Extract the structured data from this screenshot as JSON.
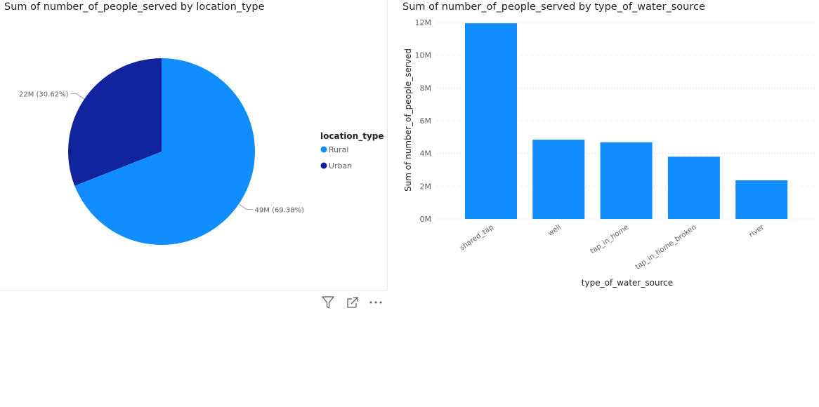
{
  "charts": [
    {
      "title": "Sum of number_of_people_served by location_type",
      "legend_title": "location_type",
      "legend_items": [
        {
          "label": "Rural",
          "color": "#118DFF"
        },
        {
          "label": "Urban",
          "color": "#12239E"
        }
      ]
    },
    {
      "title": "Sum of number_of_people_served by type_of_water_source",
      "xlabel": "type_of_water_source",
      "ylabel": "Sum of number_of_people_served"
    }
  ],
  "chart_data": [
    {
      "type": "pie",
      "title": "Sum of number_of_people_served by location_type",
      "legend_title": "location_type",
      "legend_placement": "right",
      "slices": [
        {
          "label": "Rural",
          "value": 49,
          "data_label": "49M (69.38%)",
          "color": "#118DFF"
        },
        {
          "label": "Urban",
          "value": 22,
          "data_label": "22M (30.62%)",
          "color": "#12239E"
        }
      ]
    },
    {
      "type": "bar",
      "title": "Sum of number_of_people_served by type_of_water_source",
      "xlabel": "type_of_water_source",
      "ylabel": "Sum of number_of_people_served",
      "categories": [
        "shared_tap",
        "well",
        "tap_in_home",
        "tap_in_home_broken",
        "river"
      ],
      "values": [
        11.95,
        4.84,
        4.68,
        3.8,
        2.36
      ],
      "ylim": [
        0,
        12
      ],
      "yticks": [
        0,
        2,
        4,
        6,
        8,
        10,
        12
      ],
      "ytick_labels": [
        "0M",
        "2M",
        "4M",
        "6M",
        "8M",
        "10M",
        "12M"
      ],
      "grid": true,
      "color": "#118DFF"
    }
  ],
  "header_icons": [
    "filter-icon",
    "focus-mode-icon",
    "more-options-icon"
  ]
}
